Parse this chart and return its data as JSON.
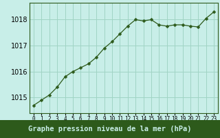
{
  "x": [
    0,
    1,
    2,
    3,
    4,
    5,
    6,
    7,
    8,
    9,
    10,
    11,
    12,
    13,
    14,
    15,
    16,
    17,
    18,
    19,
    20,
    21,
    22,
    23
  ],
  "y": [
    1014.7,
    1014.9,
    1015.1,
    1015.4,
    1015.8,
    1016.0,
    1016.15,
    1016.3,
    1016.55,
    1016.9,
    1017.15,
    1017.45,
    1017.75,
    1018.0,
    1017.95,
    1018.0,
    1017.8,
    1017.75,
    1017.8,
    1017.8,
    1017.75,
    1017.72,
    1018.05,
    1018.3
  ],
  "line_color": "#2d5a1b",
  "marker": "D",
  "marker_size": 2.5,
  "bg_color": "#c8eee8",
  "grid_color": "#a0d4c4",
  "label_bg_color": "#2d5a1b",
  "label_text_color": "#c8eee8",
  "ylabel_ticks": [
    1015,
    1016,
    1017,
    1018
  ],
  "xlabel_label": "Graphe pression niveau de la mer (hPa)",
  "xlabel_fontsize": 7.5,
  "tick_fontsize": 7,
  "ylim": [
    1014.4,
    1018.65
  ],
  "xlim": [
    -0.5,
    23.5
  ]
}
